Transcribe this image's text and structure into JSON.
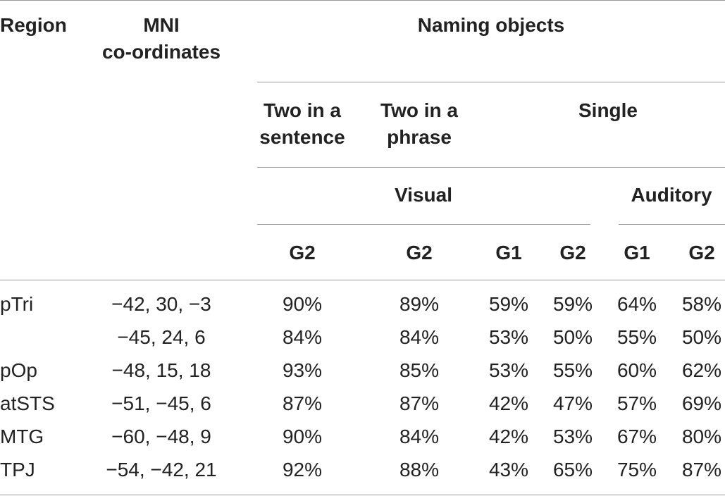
{
  "headers": {
    "region": "Region",
    "mni_line1": "MNI",
    "mni_line2": "co-ordinates",
    "naming_objects": "Naming objects",
    "two_sentence_line1": "Two in a",
    "two_sentence_line2": "sentence",
    "two_phrase_line1": "Two in a",
    "two_phrase_line2": "phrase",
    "single": "Single",
    "visual": "Visual",
    "auditory": "Auditory",
    "groups": [
      "G2",
      "G2",
      "G1",
      "G2",
      "G1",
      "G2"
    ]
  },
  "rows": [
    {
      "region": "pTri",
      "mni": "−42, 30, −3",
      "values": [
        "90%",
        "89%",
        "59%",
        "59%",
        "64%",
        "58%"
      ]
    },
    {
      "region": "",
      "mni": "−45, 24, 6",
      "values": [
        "84%",
        "84%",
        "53%",
        "50%",
        "55%",
        "50%"
      ]
    },
    {
      "region": "pOp",
      "mni": "−48, 15, 18",
      "values": [
        "93%",
        "85%",
        "53%",
        "55%",
        "60%",
        "62%"
      ]
    },
    {
      "region": "atSTS",
      "mni": "−51, −45, 6",
      "values": [
        "87%",
        "87%",
        "42%",
        "47%",
        "57%",
        "69%"
      ]
    },
    {
      "region": "MTG",
      "mni": "−60, −48, 9",
      "values": [
        "90%",
        "84%",
        "42%",
        "53%",
        "67%",
        "80%"
      ]
    },
    {
      "region": "TPJ",
      "mni": "−54, −42, 21",
      "values": [
        "92%",
        "88%",
        "43%",
        "65%",
        "75%",
        "87%"
      ]
    }
  ]
}
